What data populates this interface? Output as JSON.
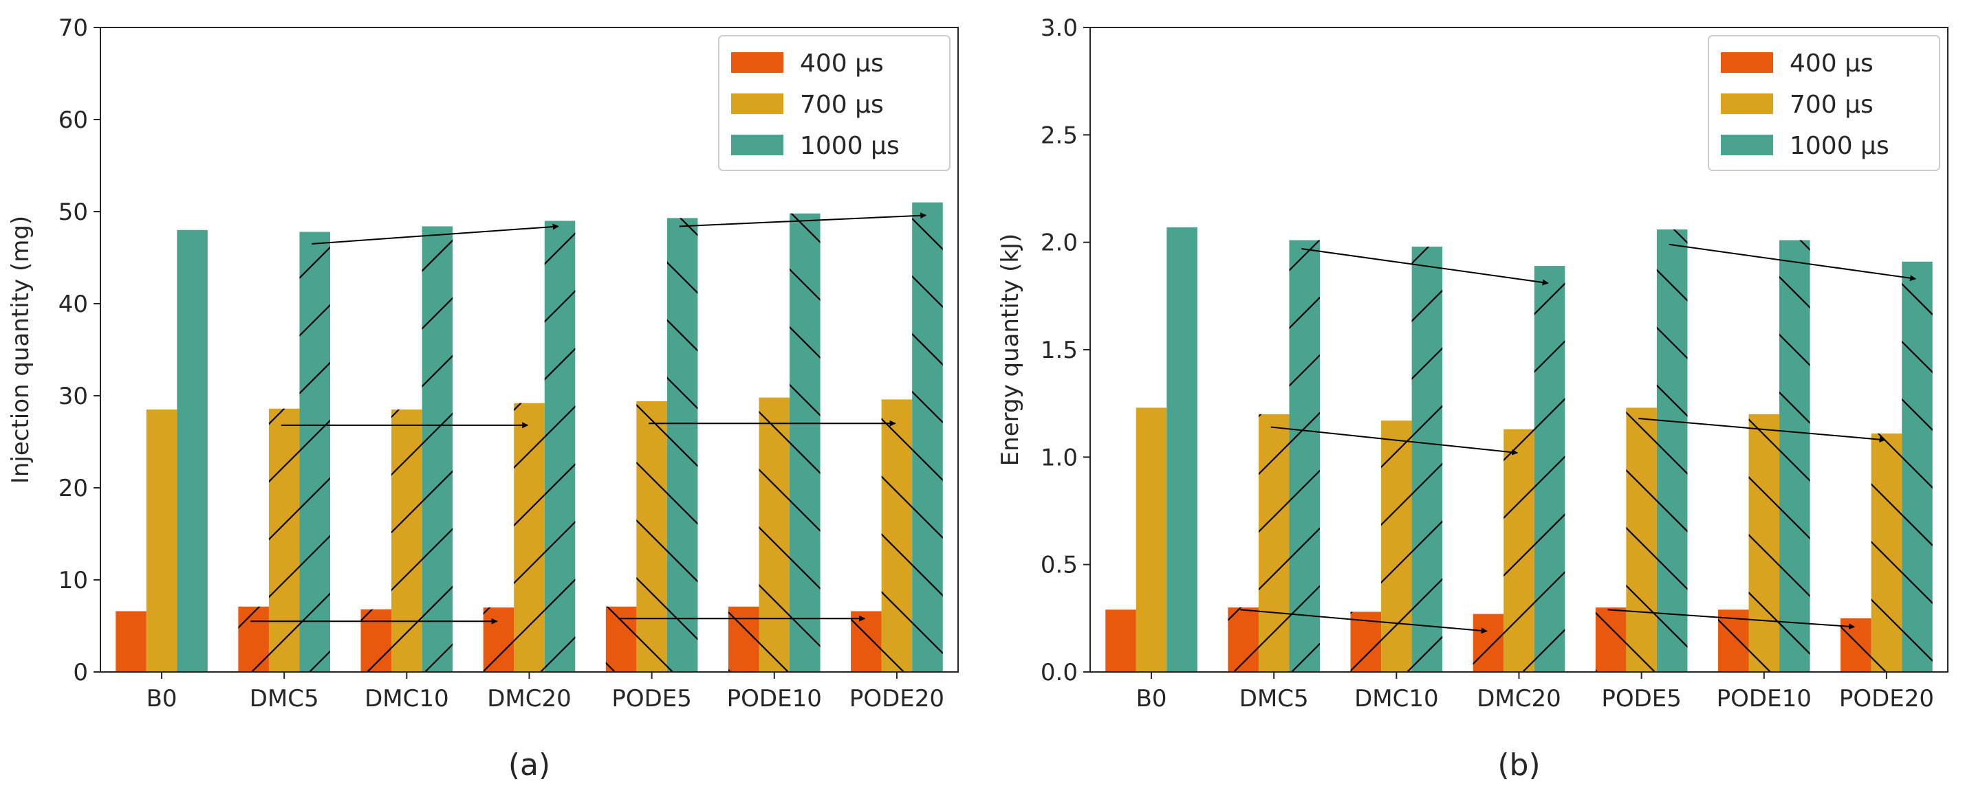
{
  "colors": {
    "s400": "#E8580E",
    "s700": "#D9A21F",
    "s1000": "#4AA38E",
    "hatch": "#000000",
    "axis": "#262626"
  },
  "chart_data": [
    {
      "type": "bar",
      "panel_label": "(a)",
      "categories": [
        "B0",
        "DMC5",
        "DMC10",
        "DMC20",
        "PODE5",
        "PODE10",
        "PODE20"
      ],
      "category_hatch": [
        "none",
        "fwd",
        "fwd",
        "fwd",
        "back",
        "back",
        "back"
      ],
      "series": [
        {
          "name": "400 µs",
          "values": [
            6.6,
            7.1,
            6.8,
            7.0,
            7.1,
            7.1,
            6.6
          ]
        },
        {
          "name": "700 µs",
          "values": [
            28.5,
            28.6,
            28.5,
            29.2,
            29.4,
            29.8,
            29.6
          ]
        },
        {
          "name": "1000 µs",
          "values": [
            48.0,
            47.8,
            48.4,
            49.0,
            49.3,
            49.8,
            51.0
          ]
        }
      ],
      "title": "",
      "xlabel": "",
      "ylabel": "Injection quantity (mg)",
      "ylim": [
        0,
        70
      ],
      "yticks": [
        0,
        10,
        20,
        30,
        40,
        50,
        60,
        70
      ],
      "ytick_labels": [
        "0",
        "10",
        "20",
        "30",
        "40",
        "50",
        "60",
        "70"
      ],
      "legend_position": "top-right",
      "annotations": [
        {
          "type": "arrow",
          "from_cat": 1,
          "from_series": 0,
          "from_y": 5.5,
          "to_cat": 3,
          "to_series": 0,
          "to_y": 5.5
        },
        {
          "type": "arrow",
          "from_cat": 1,
          "from_series": 1,
          "from_y": 26.8,
          "to_cat": 3,
          "to_series": 1,
          "to_y": 26.8
        },
        {
          "type": "arrow",
          "from_cat": 1,
          "from_series": 2,
          "from_y": 46.5,
          "to_cat": 3,
          "to_series": 2,
          "to_y": 48.4
        },
        {
          "type": "arrow",
          "from_cat": 4,
          "from_series": 0,
          "from_y": 5.8,
          "to_cat": 6,
          "to_series": 0,
          "to_y": 5.8
        },
        {
          "type": "arrow",
          "from_cat": 4,
          "from_series": 1,
          "from_y": 27.0,
          "to_cat": 6,
          "to_series": 1,
          "to_y": 27.0
        },
        {
          "type": "arrow",
          "from_cat": 4,
          "from_series": 2,
          "from_y": 48.4,
          "to_cat": 6,
          "to_series": 2,
          "to_y": 49.6
        }
      ]
    },
    {
      "type": "bar",
      "panel_label": "(b)",
      "categories": [
        "B0",
        "DMC5",
        "DMC10",
        "DMC20",
        "PODE5",
        "PODE10",
        "PODE20"
      ],
      "category_hatch": [
        "none",
        "fwd",
        "fwd",
        "fwd",
        "back",
        "back",
        "back"
      ],
      "series": [
        {
          "name": "400 µs",
          "values": [
            0.29,
            0.3,
            0.28,
            0.27,
            0.3,
            0.29,
            0.25
          ]
        },
        {
          "name": "700 µs",
          "values": [
            1.23,
            1.2,
            1.17,
            1.13,
            1.23,
            1.2,
            1.11
          ]
        },
        {
          "name": "1000 µs",
          "values": [
            2.07,
            2.01,
            1.98,
            1.89,
            2.06,
            2.01,
            1.91
          ]
        }
      ],
      "title": "",
      "xlabel": "",
      "ylabel": "Energy quantity (kJ)",
      "ylim": [
        0,
        3.0
      ],
      "yticks": [
        0,
        0.5,
        1.0,
        1.5,
        2.0,
        2.5,
        3.0
      ],
      "ytick_labels": [
        "0.0",
        "0.5",
        "1.0",
        "1.5",
        "2.0",
        "2.5",
        "3.0"
      ],
      "legend_position": "top-right",
      "annotations": [
        {
          "type": "arrow",
          "from_cat": 1,
          "from_series": 0,
          "from_y": 0.29,
          "to_cat": 3,
          "to_series": 0,
          "to_y": 0.19
        },
        {
          "type": "arrow",
          "from_cat": 1,
          "from_series": 1,
          "from_y": 1.14,
          "to_cat": 3,
          "to_series": 1,
          "to_y": 1.02
        },
        {
          "type": "arrow",
          "from_cat": 1,
          "from_series": 2,
          "from_y": 1.97,
          "to_cat": 3,
          "to_series": 2,
          "to_y": 1.81
        },
        {
          "type": "arrow",
          "from_cat": 4,
          "from_series": 0,
          "from_y": 0.29,
          "to_cat": 6,
          "to_series": 0,
          "to_y": 0.21
        },
        {
          "type": "arrow",
          "from_cat": 4,
          "from_series": 1,
          "from_y": 1.18,
          "to_cat": 6,
          "to_series": 1,
          "to_y": 1.08
        },
        {
          "type": "arrow",
          "from_cat": 4,
          "from_series": 2,
          "from_y": 1.99,
          "to_cat": 6,
          "to_series": 2,
          "to_y": 1.83
        }
      ]
    }
  ]
}
